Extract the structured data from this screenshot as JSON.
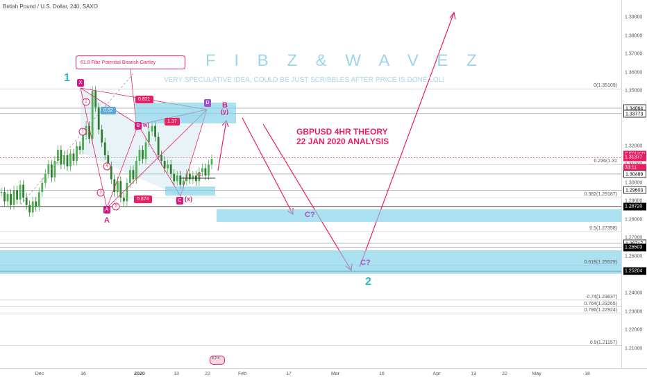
{
  "header": {
    "text": "British Pound / U.S. Dollar, 240, SAXO"
  },
  "title": "F I B Z  &  W A V E Z",
  "subtitle": "VERY SPECULATIVE IDEA, COULD BE JUST SCRIBBLES AFTER PRICE IS DONE LOL!",
  "theory": {
    "line1": "GBPUSD 4HR THEORY",
    "line2": "22 JAN 2020 ANALYSIS"
  },
  "callout": "61.8 Fibz Potential Bearish Gartley",
  "wave_labels": {
    "one": "1",
    "two": "2",
    "A": "A",
    "B": "B",
    "y": "(y)",
    "x": "(x)",
    "w": "w)",
    "c1": "C?",
    "c2": "C?"
  },
  "points": {
    "X": "X",
    "A": "A",
    "B": "B",
    "C": "C",
    "D": "D"
  },
  "ratios": {
    "r062": "0.62",
    "r0821": "0.821",
    "r137": "1.37",
    "r0874": "0.874"
  },
  "circled": [
    "1",
    "2",
    "3",
    "4",
    "5"
  ],
  "small_marks": {
    "m1": "61",
    "m2": "3"
  },
  "badge": {
    "text": "3 2 4"
  },
  "price_ticks": [
    "1.39000",
    "1.38000",
    "1.37000",
    "1.36000",
    "1.35000",
    "1.32000",
    "1.31000",
    "1.30000",
    "1.29000",
    "1.28000",
    "1.27000",
    "1.26000",
    "1.24000",
    "1.23000",
    "1.22000",
    "1.21000"
  ],
  "price_tags": [
    {
      "text": "1.34064",
      "style": "white"
    },
    {
      "text": "1.33773",
      "style": "white"
    },
    {
      "text": "GBPUSD",
      "style": "red"
    },
    {
      "text": "1.31377",
      "style": "red"
    },
    {
      "text": "33:11",
      "style": "red"
    },
    {
      "text": "1.30489",
      "style": "white"
    },
    {
      "text": "1.29603",
      "style": "white"
    },
    {
      "text": "1.28720",
      "style": "black"
    },
    {
      "text": "1.26717",
      "style": "white"
    },
    {
      "text": "1.26503",
      "style": "black"
    },
    {
      "text": "1.25204",
      "style": "black"
    }
  ],
  "fib_labels": [
    "0(1.35109)",
    "0.236(1.31",
    "0.382(1.29187)",
    "0.5(1.27358)",
    "0.618(1.25529)",
    "0.74(1.23637)",
    "0.764(1.23265)",
    "0.786(1.22924)",
    "0.9(1.21157)"
  ],
  "time_ticks": [
    "Dec",
    "16",
    "2020",
    "13",
    "22",
    "Feb",
    "17",
    "Mar",
    "16",
    "Apr",
    "13",
    "22",
    "May",
    "18"
  ],
  "colors": {
    "pink": "#e91e63",
    "teal": "#26b8c9",
    "zone": "#7ecfea",
    "candle": "#4caf50"
  },
  "chart_data": {
    "type": "candlestick",
    "symbol": "British Pound / U.S. Dollar",
    "timeframe": "240",
    "source": "SAXO",
    "y_range": [
      1.205,
      1.397
    ],
    "last_price": 1.31377,
    "fib_levels": [
      {
        "ratio": "0",
        "price": 1.35109
      },
      {
        "ratio": "0.236",
        "price": 1.31
      },
      {
        "ratio": "0.382",
        "price": 1.29187
      },
      {
        "ratio": "0.5",
        "price": 1.27358
      },
      {
        "ratio": "0.618",
        "price": 1.25529
      },
      {
        "ratio": "0.74",
        "price": 1.23637
      },
      {
        "ratio": "0.764",
        "price": 1.23265
      },
      {
        "ratio": "0.786",
        "price": 1.22924
      },
      {
        "ratio": "0.9",
        "price": 1.21157
      }
    ],
    "horizontal_levels": [
      1.34064,
      1.33773,
      1.30489,
      1.29603,
      1.2872,
      1.26717,
      1.26503,
      1.25204
    ],
    "close_path": [
      1.295,
      1.29,
      1.294,
      1.288,
      1.296,
      1.291,
      1.299,
      1.292,
      1.288,
      1.284,
      1.29,
      1.287,
      1.295,
      1.3,
      1.305,
      1.31,
      1.303,
      1.312,
      1.318,
      1.31,
      1.315,
      1.309,
      1.316,
      1.312,
      1.32,
      1.318,
      1.326,
      1.331,
      1.324,
      1.35,
      1.341,
      1.329,
      1.322,
      1.315,
      1.309,
      1.302,
      1.295,
      1.301,
      1.292,
      1.29,
      1.3,
      1.307,
      1.302,
      1.312,
      1.318,
      1.313,
      1.322,
      1.328,
      1.331,
      1.325,
      1.315,
      1.312,
      1.308,
      1.31,
      1.305,
      1.301,
      1.304,
      1.299,
      1.301,
      1.305,
      1.302,
      1.304,
      1.301,
      1.306,
      1.308,
      1.304,
      1.31,
      1.313
    ]
  }
}
